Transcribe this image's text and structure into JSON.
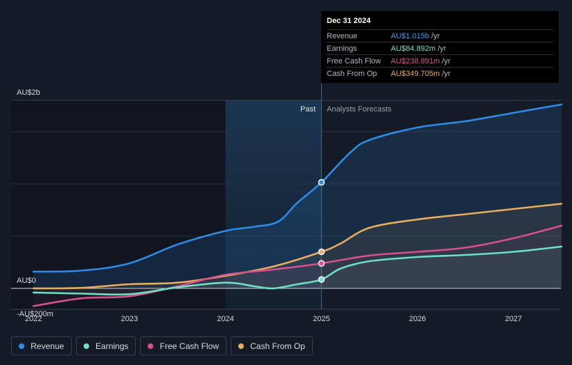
{
  "tooltip": {
    "date": "Dec 31 2024",
    "rows": [
      {
        "label": "Revenue",
        "value": "AU$1.015b",
        "unit": "/yr",
        "color": "#3b9ae8"
      },
      {
        "label": "Earnings",
        "value": "AU$84.892m",
        "unit": "/yr",
        "color": "#6fe0c8"
      },
      {
        "label": "Free Cash Flow",
        "value": "AU$238.891m",
        "unit": "/yr",
        "color": "#d9508e"
      },
      {
        "label": "Cash From Op",
        "value": "AU$349.705m",
        "unit": "/yr",
        "color": "#e8ad5e"
      }
    ]
  },
  "regions": {
    "past": "Past",
    "forecast": "Analysts Forecasts"
  },
  "legend": [
    {
      "label": "Revenue",
      "color": "#2e8be6"
    },
    {
      "label": "Earnings",
      "color": "#6fe0c8"
    },
    {
      "label": "Free Cash Flow",
      "color": "#d9508e"
    },
    {
      "label": "Cash From Op",
      "color": "#e8ad5e"
    }
  ],
  "chart_data": {
    "type": "line",
    "title": "",
    "xlabel": "",
    "ylabel": "",
    "x_ticks": [
      2022,
      2023,
      2024,
      2025,
      2026,
      2027
    ],
    "x_range": [
      2022.0,
      2027.5
    ],
    "ylim": [
      -200,
      1800
    ],
    "y_tick_labels": [
      {
        "value": 1800,
        "label": "AU$2b"
      },
      {
        "value": 0,
        "label": "AU$0"
      },
      {
        "value": -200,
        "label": "-AU$200m"
      }
    ],
    "gridlines": [
      1500,
      1000,
      500
    ],
    "past_end": 2025.0,
    "highlight_start": 2024.0,
    "series": [
      {
        "name": "Revenue",
        "color": "#2e8be6",
        "points": [
          [
            2022.0,
            160
          ],
          [
            2022.5,
            170
          ],
          [
            2023.0,
            240
          ],
          [
            2023.5,
            420
          ],
          [
            2024.0,
            550
          ],
          [
            2024.3,
            590
          ],
          [
            2024.55,
            640
          ],
          [
            2024.75,
            820
          ],
          [
            2025.0,
            1015
          ],
          [
            2025.3,
            1300
          ],
          [
            2025.5,
            1420
          ],
          [
            2026.0,
            1540
          ],
          [
            2026.5,
            1600
          ],
          [
            2027.0,
            1680
          ],
          [
            2027.5,
            1760
          ]
        ],
        "markers": [
          [
            2025.0,
            1015
          ]
        ]
      },
      {
        "name": "Earnings",
        "color": "#6fe0c8",
        "points": [
          [
            2022.0,
            -40
          ],
          [
            2022.5,
            -50
          ],
          [
            2023.0,
            -55
          ],
          [
            2023.5,
            10
          ],
          [
            2024.0,
            55
          ],
          [
            2024.3,
            20
          ],
          [
            2024.5,
            0
          ],
          [
            2024.75,
            40
          ],
          [
            2025.0,
            85
          ],
          [
            2025.2,
            190
          ],
          [
            2025.5,
            260
          ],
          [
            2026.0,
            300
          ],
          [
            2026.5,
            320
          ],
          [
            2027.0,
            350
          ],
          [
            2027.5,
            400
          ]
        ],
        "markers": [
          [
            2025.0,
            85
          ]
        ]
      },
      {
        "name": "Free Cash Flow",
        "color": "#d9508e",
        "points": [
          [
            2022.0,
            -170
          ],
          [
            2022.5,
            -95
          ],
          [
            2023.0,
            -75
          ],
          [
            2023.5,
            20
          ],
          [
            2024.0,
            130
          ],
          [
            2024.5,
            180
          ],
          [
            2025.0,
            239
          ],
          [
            2025.5,
            315
          ],
          [
            2026.0,
            350
          ],
          [
            2026.5,
            390
          ],
          [
            2027.0,
            480
          ],
          [
            2027.5,
            600
          ]
        ],
        "markers": [
          [
            2025.0,
            239
          ]
        ]
      },
      {
        "name": "Cash From Op",
        "color": "#e8ad5e",
        "points": [
          [
            2022.0,
            0
          ],
          [
            2022.5,
            5
          ],
          [
            2023.0,
            40
          ],
          [
            2023.5,
            55
          ],
          [
            2024.0,
            120
          ],
          [
            2024.5,
            210
          ],
          [
            2025.0,
            350
          ],
          [
            2025.2,
            430
          ],
          [
            2025.5,
            580
          ],
          [
            2026.0,
            660
          ],
          [
            2026.5,
            710
          ],
          [
            2027.0,
            760
          ],
          [
            2027.5,
            810
          ]
        ],
        "markers": [
          [
            2025.0,
            350
          ]
        ]
      }
    ]
  }
}
